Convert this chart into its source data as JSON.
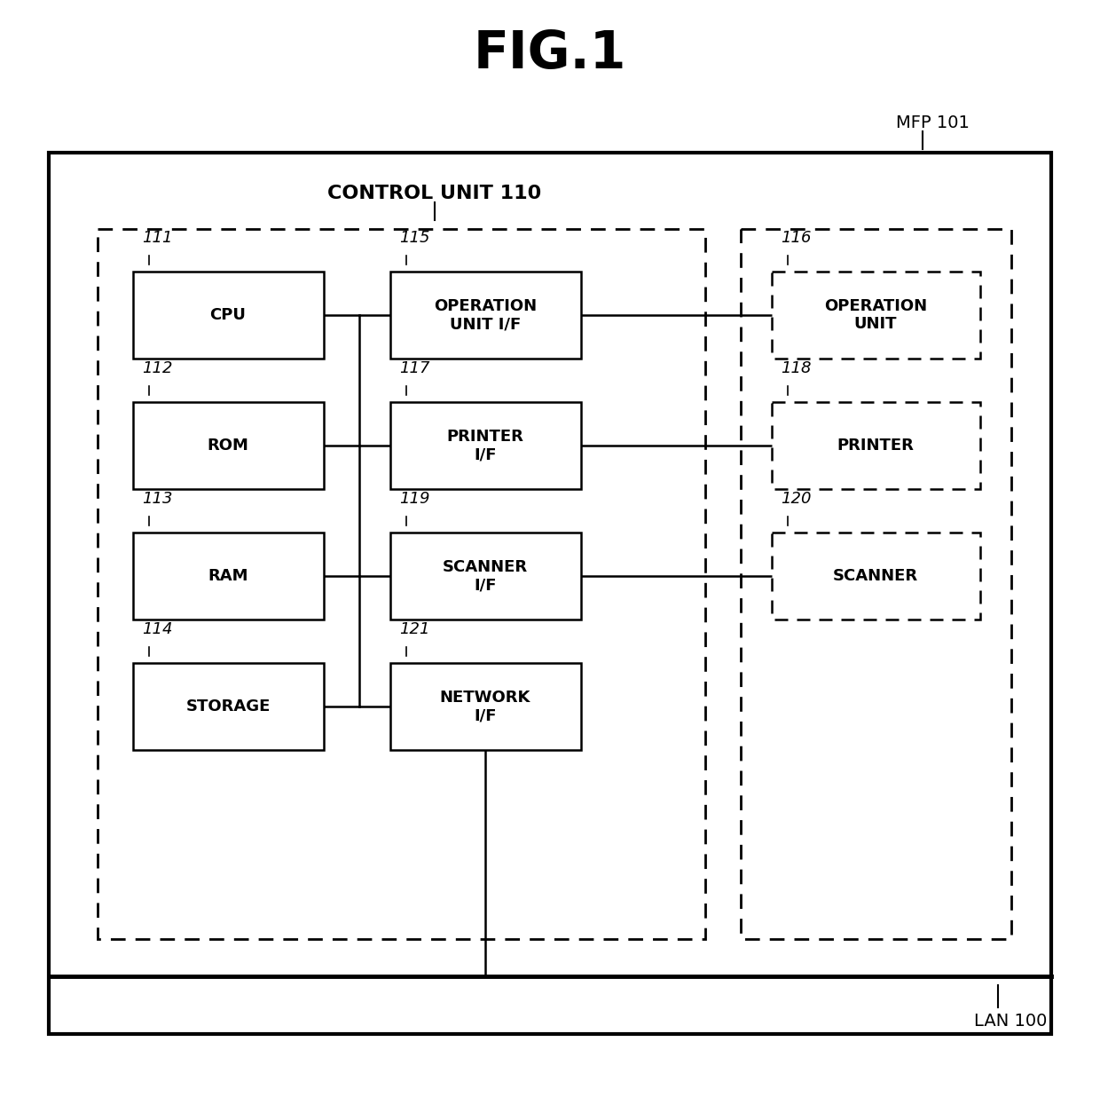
{
  "title": "FIG.1",
  "title_fontsize": 38,
  "title_fontweight": "bold",
  "bg_color": "#ffffff",
  "fig_label": "MFP 101",
  "lan_label": "LAN 100",
  "control_unit_label": "CONTROL UNIT 110",
  "line_color": "#000000",
  "box_edge_color": "#000000",
  "text_color": "#000000",
  "blocks": [
    {
      "id": "cpu",
      "label": "CPU",
      "num": "111",
      "col": 0,
      "row": 0,
      "dashed": false
    },
    {
      "id": "rom",
      "label": "ROM",
      "num": "112",
      "col": 0,
      "row": 1,
      "dashed": false
    },
    {
      "id": "ram",
      "label": "RAM",
      "num": "113",
      "col": 0,
      "row": 2,
      "dashed": false
    },
    {
      "id": "storage",
      "label": "STORAGE",
      "num": "114",
      "col": 0,
      "row": 3,
      "dashed": false
    },
    {
      "id": "op_if",
      "label": "OPERATION\nUNIT I/F",
      "num": "115",
      "col": 1,
      "row": 0,
      "dashed": false
    },
    {
      "id": "pr_if",
      "label": "PRINTER\nI/F",
      "num": "117",
      "col": 1,
      "row": 1,
      "dashed": false
    },
    {
      "id": "sc_if",
      "label": "SCANNER\nI/F",
      "num": "119",
      "col": 1,
      "row": 2,
      "dashed": false
    },
    {
      "id": "net_if",
      "label": "NETWORK\nI/F",
      "num": "121",
      "col": 1,
      "row": 3,
      "dashed": false
    },
    {
      "id": "op_unit",
      "label": "OPERATION\nUNIT",
      "num": "116",
      "col": 2,
      "row": 0,
      "dashed": true
    },
    {
      "id": "printer",
      "label": "PRINTER",
      "num": "118",
      "col": 2,
      "row": 1,
      "dashed": true
    },
    {
      "id": "scanner",
      "label": "SCANNER",
      "num": "120",
      "col": 2,
      "row": 2,
      "dashed": true
    }
  ]
}
